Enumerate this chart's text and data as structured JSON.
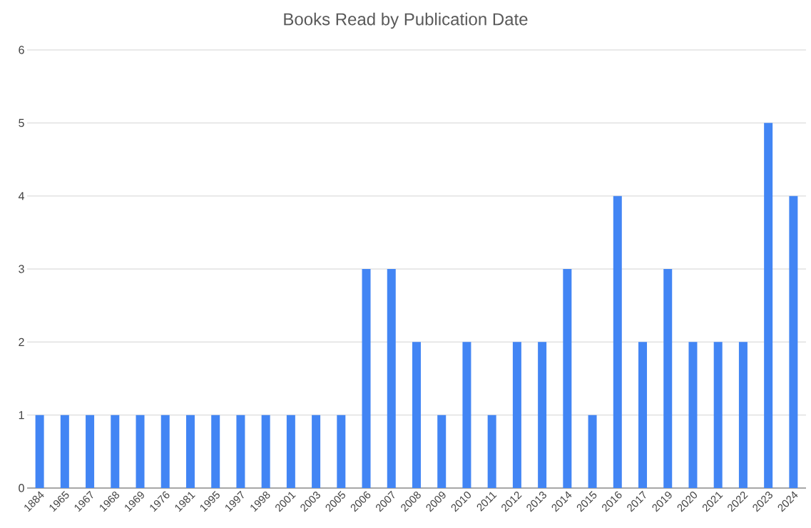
{
  "chart_data": {
    "type": "bar",
    "title": "Books Read by Publication Date",
    "categories": [
      "1884",
      "1965",
      "1967",
      "1968",
      "1969",
      "1976",
      "1981",
      "1995",
      "1997",
      "1998",
      "2001",
      "2003",
      "2005",
      "2006",
      "2007",
      "2008",
      "2009",
      "2010",
      "2011",
      "2012",
      "2013",
      "2014",
      "2015",
      "2016",
      "2017",
      "2019",
      "2020",
      "2021",
      "2022",
      "2023",
      "2024"
    ],
    "values": [
      1,
      1,
      1,
      1,
      1,
      1,
      1,
      1,
      1,
      1,
      1,
      1,
      1,
      3,
      3,
      2,
      1,
      2,
      1,
      2,
      2,
      3,
      1,
      4,
      2,
      3,
      2,
      2,
      2,
      5,
      4
    ],
    "color": "#4285f4",
    "ylim": [
      0,
      6
    ],
    "yticks": [
      0,
      1,
      2,
      3,
      4,
      5,
      6
    ],
    "grid": "y"
  }
}
